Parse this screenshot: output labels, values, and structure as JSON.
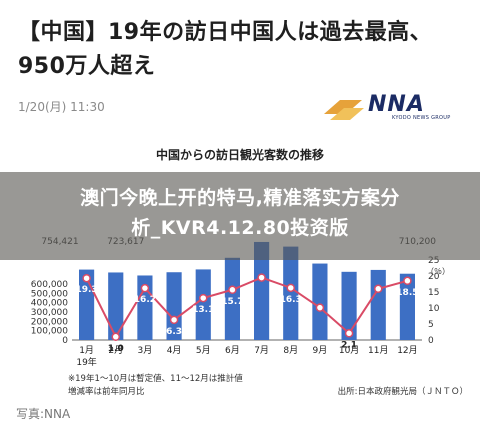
{
  "article": {
    "headline_line1": "【中国】19年の訪日中国人は過去最高、",
    "headline_line2": "950万人超え",
    "date": "1/20(月) 11:30",
    "logo_text": "NNA",
    "logo_sub": "KYODO NEWS GROUP",
    "photo_credit": "写真:NNA"
  },
  "overlay": {
    "line1": "澳门今晚上开的特马,精准落实方案分",
    "line2": "析_KVR4.12.80投资版"
  },
  "notes": {
    "note1": "※19年1〜10月は暫定値、11〜12月は推計値",
    "note2": "増減率は前年同月比",
    "source": "出所:日本政府観光局（ＪＮＴＯ）"
  },
  "colors": {
    "bar": "#3d6fc4",
    "line": "#d94b66",
    "logo": "#1b2b64",
    "logo_stripe": "#e6a23a"
  },
  "chart_data": {
    "type": "bar",
    "title": "中国からの訪日観光客数の推移",
    "categories": [
      "1月",
      "2月",
      "3月",
      "4月",
      "5月",
      "6月",
      "7月",
      "8月",
      "9月",
      "10月",
      "11月",
      "12月"
    ],
    "year_label": "19年",
    "series": [
      {
        "name": "観光客数",
        "type": "bar",
        "axis": "left",
        "values": [
          754421,
          723617,
          691300,
          726100,
          756200,
          880700,
          1050400,
          1000600,
          819100,
          730600,
          750900,
          710200
        ],
        "data_labels": [
          "754,421",
          "723,617",
          "",
          "",
          "",
          "",
          "",
          "",
          "",
          "",
          "",
          "710,200"
        ]
      },
      {
        "name": "増減率",
        "type": "line",
        "axis": "right",
        "values": [
          19.3,
          1.0,
          16.2,
          6.3,
          13.1,
          15.7,
          19.5,
          16.3,
          10.1,
          2.1,
          16.0,
          18.5
        ],
        "data_labels": [
          "19.3",
          "1.0",
          "16.2",
          "6.3",
          "13.1",
          "15.7",
          "",
          "16.3",
          "",
          "2.1",
          "",
          "18.5"
        ]
      }
    ],
    "left_ticks": [
      "0",
      "100,000",
      "200,000",
      "300,000",
      "400,000",
      "500,000",
      "600,000"
    ],
    "right_ticks": [
      "0",
      "5",
      "10",
      "15",
      "20",
      "25"
    ],
    "right_unit": "（％）",
    "ylim_left": [
      0,
      1200000
    ],
    "ylim_right": [
      0,
      35
    ]
  }
}
